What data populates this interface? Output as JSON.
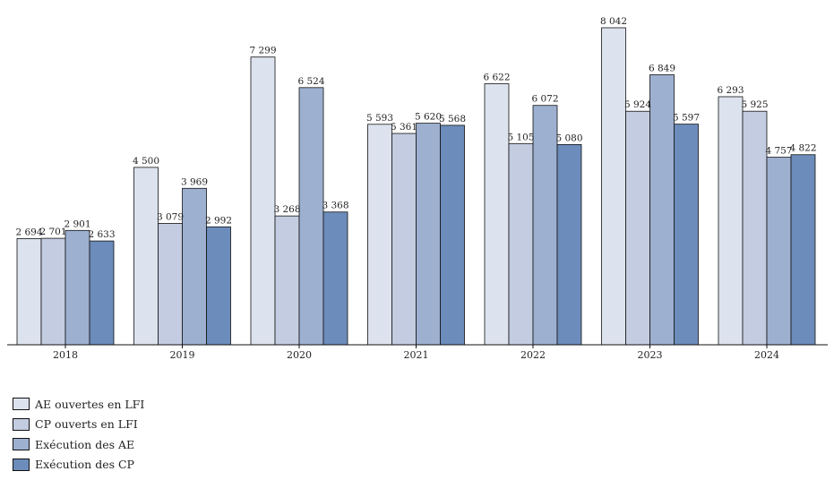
{
  "chart_data": {
    "type": "bar",
    "categories": [
      "2018",
      "2019",
      "2020",
      "2021",
      "2022",
      "2023",
      "2024"
    ],
    "series": [
      {
        "name": "AE ouvertes en LFI",
        "color": "#dde3ee",
        "values": [
          2694,
          4500,
          7299,
          5593,
          6622,
          8042,
          6293
        ],
        "labels": [
          "2 694",
          "4 500",
          "7 299",
          "5 593",
          "6 622",
          "8 042",
          "6 293"
        ]
      },
      {
        "name": "CP ouverts en LFI",
        "color": "#c3cce0",
        "values": [
          2701,
          3079,
          3268,
          5361,
          5105,
          5924,
          5925
        ],
        "labels": [
          "2 701",
          "3 079",
          "3 268",
          "5 361",
          "5 105",
          "5 924",
          "5 925"
        ]
      },
      {
        "name": "Exécution des AE",
        "color": "#9db0d0",
        "values": [
          2901,
          3969,
          6524,
          5620,
          6072,
          6849,
          4757
        ],
        "labels": [
          "2 901",
          "3 969",
          "6 524",
          "5 620",
          "6 072",
          "6 849",
          "4 757"
        ]
      },
      {
        "name": "Exécution des CP",
        "color": "#6c8cbb",
        "values": [
          2633,
          2992,
          3368,
          5568,
          5080,
          5597,
          4822
        ],
        "labels": [
          "2 633",
          "2 992",
          "3 368",
          "5 568",
          "5 080",
          "5 597",
          "4 822"
        ]
      }
    ],
    "ylim": [
      0,
      8042
    ],
    "grid": false,
    "legend_position": "bottom-left"
  }
}
